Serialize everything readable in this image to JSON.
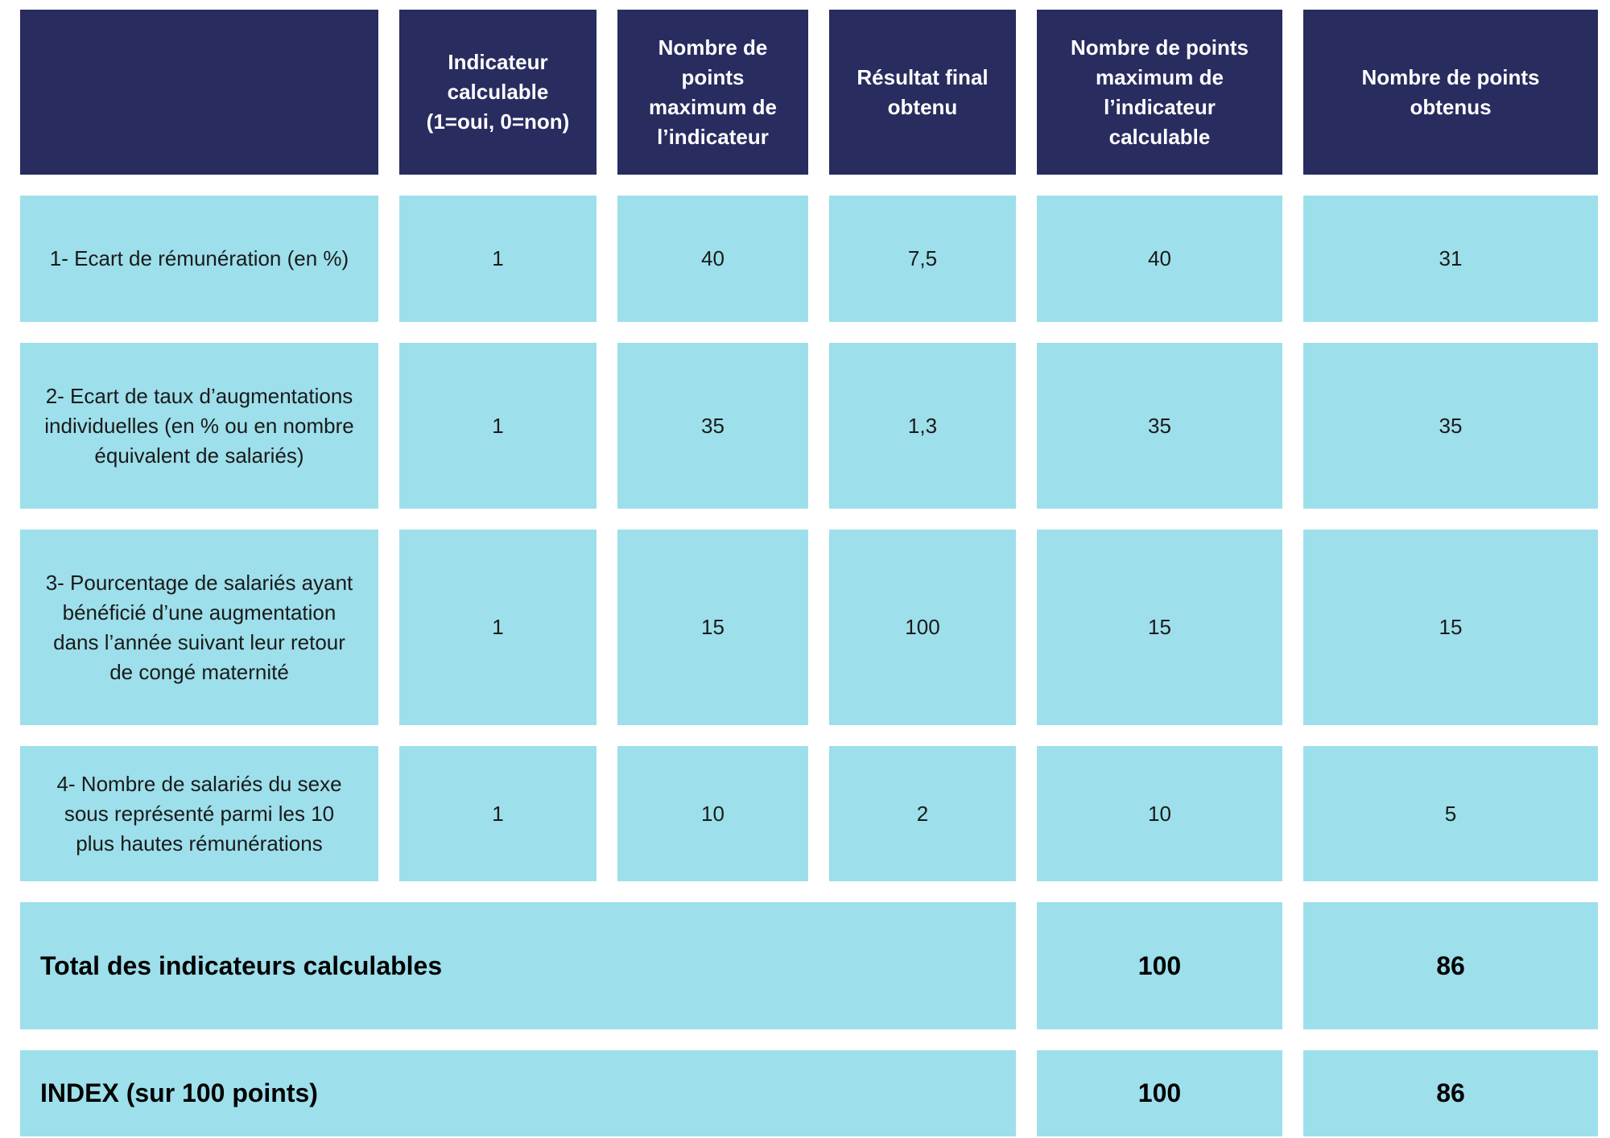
{
  "header": {
    "label": "",
    "columns": [
      "Indicateur calculable (1=oui, 0=non)",
      "Nombre de points maximum de l’indicateur",
      "Résultat final obtenu",
      "Nombre de points maximum de l’indicateur calculable",
      "Nombre de points obtenus"
    ]
  },
  "rows": [
    {
      "label": "1- Ecart de rémunération (en %)",
      "calculable": "1",
      "max_points": "40",
      "result": "7,5",
      "max_points_calculable": "40",
      "points_obtained": "31"
    },
    {
      "label": "2- Ecart de taux d’augmentations individuelles (en % ou en nombre équivalent de salariés)",
      "calculable": "1",
      "max_points": "35",
      "result": "1,3",
      "max_points_calculable": "35",
      "points_obtained": "35"
    },
    {
      "label": "3- Pourcentage de salariés ayant bénéficié d’une augmentation dans l’année suivant leur retour de congé maternité",
      "calculable": "1",
      "max_points": "15",
      "result": "100",
      "max_points_calculable": "15",
      "points_obtained": "15"
    },
    {
      "label": "4- Nombre de salariés du sexe sous représenté parmi les 10 plus hautes rémunérations",
      "calculable": "1",
      "max_points": "10",
      "result": "2",
      "max_points_calculable": "10",
      "points_obtained": "5"
    }
  ],
  "totals": [
    {
      "label": "Total des indicateurs calculables",
      "max_points_calculable": "100",
      "points_obtained": "86"
    },
    {
      "label": "INDEX (sur 100 points)",
      "max_points_calculable": "100",
      "points_obtained": "86"
    }
  ],
  "colors": {
    "header_background": "#282c5f",
    "cell_background": "#9ddfeb",
    "header_text": "#ffffff",
    "body_text": "#1a1a1a"
  }
}
